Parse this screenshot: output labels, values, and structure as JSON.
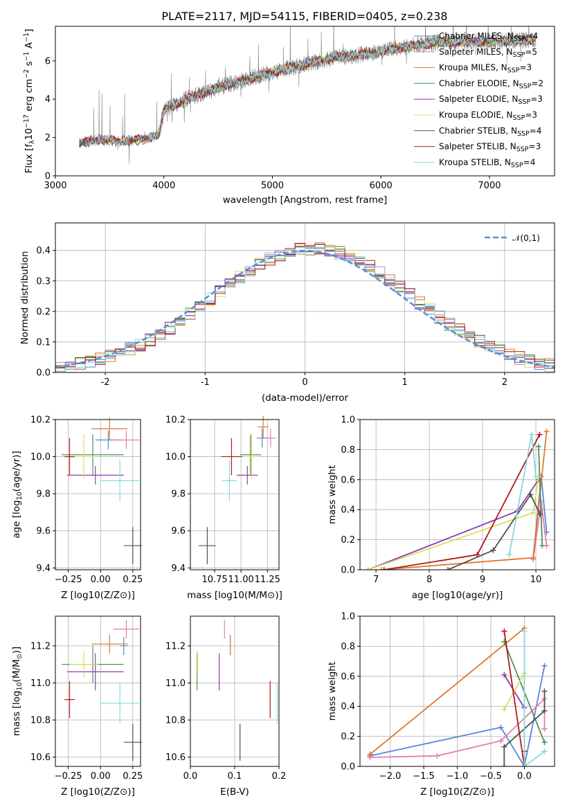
{
  "title": "PLATE=2117, MJD=54115, FIBERID=0405, z=0.238",
  "colors": {
    "Chabrier MILES": "#5a86d6",
    "Salpeter MILES": "#e37dac",
    "Kroupa MILES": "#e0772a",
    "Chabrier ELODIE": "#4f8f5a",
    "Salpeter ELODIE": "#8e3bb0",
    "Kroupa ELODIE": "#d8e05a",
    "Chabrier STELIB": "#505050",
    "Salpeter STELIB": "#b01818",
    "Kroupa STELIB": "#86d8dc"
  },
  "chart_data": [
    {
      "id": "spectrum",
      "type": "line",
      "title": "PLATE=2117, MJD=54115, FIBERID=0405, z=0.238",
      "xlabel": "wavelength [Angstrom, rest frame]",
      "ylabel": "Flux [f_λ 10^-17 erg cm^-2 s^-1 A^-1]",
      "xlim": [
        3000,
        7600
      ],
      "ylim": [
        0,
        7.8
      ],
      "xticks": [
        3000,
        4000,
        5000,
        6000,
        7000
      ],
      "yticks": [
        0,
        2,
        4,
        6
      ],
      "data_range": [
        3220,
        7430
      ],
      "legend": [
        {
          "model": "Chabrier MILES",
          "nssp": "4"
        },
        {
          "model": "Salpeter MILES",
          "nssp": "5"
        },
        {
          "model": "Kroupa MILES",
          "nssp": "3"
        },
        {
          "model": "Chabrier ELODIE",
          "nssp": "2"
        },
        {
          "model": "Salpeter ELODIE",
          "nssp": "3"
        },
        {
          "model": "Kroupa ELODIE",
          "nssp": "3"
        },
        {
          "model": "Chabrier STELIB",
          "nssp": "4"
        },
        {
          "model": "Salpeter STELIB",
          "nssp": "3"
        },
        {
          "model": "Kroupa STELIB",
          "nssp": "4"
        }
      ],
      "continuum": {
        "x": [
          3220,
          3400,
          3600,
          3800,
          3950,
          4000,
          4200,
          4500,
          4800,
          5000,
          5300,
          5600,
          5800,
          6000,
          6300,
          6600,
          7000,
          7400
        ],
        "y": [
          1.7,
          1.9,
          1.8,
          1.9,
          2.1,
          3.4,
          4.0,
          4.6,
          5.1,
          5.4,
          5.8,
          6.2,
          6.3,
          6.5,
          6.8,
          7.0,
          7.0,
          7.1
        ]
      }
    },
    {
      "id": "residuals",
      "type": "line",
      "xlabel": "(data-model)/error",
      "ylabel": "Normed distribution",
      "xlim": [
        -2.5,
        2.5
      ],
      "ylim": [
        0,
        0.49
      ],
      "xticks": [
        -2,
        -1,
        0,
        1,
        2
      ],
      "yticks": [
        0.0,
        0.1,
        0.2,
        0.3,
        0.4
      ],
      "reference": {
        "name": "𝒩(0,1)",
        "mean": 0,
        "sigma": 1
      },
      "bin_width": 0.1
    },
    {
      "id": "age-vs-Z",
      "type": "scatter",
      "xlabel": "Z [log10(Z/Z⊙)]",
      "ylabel": "age [log10(age/yr)]",
      "xlim": [
        -0.35,
        0.31
      ],
      "ylim": [
        9.39,
        10.2
      ],
      "xticks": [
        -0.25,
        0.0,
        0.25
      ],
      "xticklabels": [
        "−0.25",
        "0.00",
        "0.25"
      ],
      "yticks": [
        9.4,
        9.6,
        9.8,
        10.0,
        10.2
      ],
      "points": [
        {
          "model": "Chabrier MILES",
          "x": 0.06,
          "xerr": 0.1,
          "y": 10.09,
          "yerr": 0.05
        },
        {
          "model": "Salpeter MILES",
          "x": 0.2,
          "xerr": 0.1,
          "y": 10.09,
          "yerr": 0.05
        },
        {
          "model": "Kroupa MILES",
          "x": 0.07,
          "xerr": 0.14,
          "y": 10.15,
          "yerr": 0.06
        },
        {
          "model": "Chabrier ELODIE",
          "x": -0.06,
          "xerr": 0.24,
          "y": 10.01,
          "yerr": 0.11
        },
        {
          "model": "Salpeter ELODIE",
          "x": -0.04,
          "xerr": 0.22,
          "y": 9.9,
          "yerr": 0.05
        },
        {
          "model": "Kroupa ELODIE",
          "x": -0.13,
          "xerr": 0.11,
          "y": 10.0,
          "yerr": 0.12
        },
        {
          "model": "Chabrier STELIB",
          "x": 0.25,
          "xerr": 0.07,
          "y": 9.52,
          "yerr": 0.1
        },
        {
          "model": "Salpeter STELIB",
          "x": -0.24,
          "xerr": 0.04,
          "y": 10.0,
          "yerr": 0.1
        },
        {
          "model": "Kroupa STELIB",
          "x": 0.15,
          "xerr": 0.15,
          "y": 9.87,
          "yerr": 0.11
        }
      ]
    },
    {
      "id": "age-vs-mass",
      "type": "scatter",
      "xlabel": "mass [log10(M/M⊙)]",
      "xlim": [
        10.52,
        11.36
      ],
      "ylim": [
        9.39,
        10.2
      ],
      "xticks": [
        10.75,
        11.0,
        11.25
      ],
      "xticklabels": [
        "10.75",
        "11.00",
        "11.25"
      ],
      "yticks": [
        9.4,
        9.6,
        9.8,
        10.0,
        10.2
      ],
      "points": [
        {
          "model": "Chabrier MILES",
          "x": 11.2,
          "xerr": 0.05,
          "y": 10.1,
          "yerr": 0.05
        },
        {
          "model": "Salpeter MILES",
          "x": 11.28,
          "xerr": 0.05,
          "y": 10.1,
          "yerr": 0.05
        },
        {
          "model": "Kroupa MILES",
          "x": 11.21,
          "xerr": 0.05,
          "y": 10.16,
          "yerr": 0.06
        },
        {
          "model": "Chabrier ELODIE",
          "x": 11.09,
          "xerr": 0.1,
          "y": 10.01,
          "yerr": 0.11
        },
        {
          "model": "Salpeter ELODIE",
          "x": 11.06,
          "xerr": 0.1,
          "y": 9.9,
          "yerr": 0.05
        },
        {
          "model": "Kroupa ELODIE",
          "x": 11.1,
          "xerr": 0.07,
          "y": 10.0,
          "yerr": 0.12
        },
        {
          "model": "Chabrier STELIB",
          "x": 10.68,
          "xerr": 0.08,
          "y": 9.52,
          "yerr": 0.1
        },
        {
          "model": "Salpeter STELIB",
          "x": 10.91,
          "xerr": 0.1,
          "y": 10.0,
          "yerr": 0.1
        },
        {
          "model": "Kroupa STELIB",
          "x": 10.89,
          "xerr": 0.07,
          "y": 9.87,
          "yerr": 0.11
        }
      ]
    },
    {
      "id": "massweight-vs-age",
      "type": "line",
      "xlabel": "age [log10(age/yr)]",
      "ylabel": "mass weight",
      "xlim": [
        6.7,
        10.35
      ],
      "ylim": [
        0,
        1.0
      ],
      "xticks": [
        7,
        8,
        9,
        10
      ],
      "yticks": [
        0.0,
        0.2,
        0.4,
        0.6,
        0.8,
        1.0
      ],
      "series": [
        {
          "model": "Chabrier MILES",
          "x": [
            9.95,
            10.1,
            10.2
          ],
          "y": [
            0.08,
            0.62,
            0.25
          ]
        },
        {
          "model": "Salpeter MILES",
          "x": [
            9.95,
            10.1,
            10.2
          ],
          "y": [
            0.07,
            0.45,
            0.16
          ]
        },
        {
          "model": "Kroupa MILES",
          "x": [
            7.1,
            9.95,
            10.2
          ],
          "y": [
            0.0,
            0.08,
            0.92
          ]
        },
        {
          "model": "Chabrier ELODIE",
          "x": [
            10.05,
            10.12
          ],
          "y": [
            0.82,
            0.16
          ]
        },
        {
          "model": "Salpeter ELODIE",
          "x": [
            6.85,
            9.65,
            10.05
          ],
          "y": [
            0.0,
            0.39,
            0.6
          ]
        },
        {
          "model": "Kroupa ELODIE",
          "x": [
            6.85,
            9.95,
            10.05
          ],
          "y": [
            0.0,
            0.38,
            0.62
          ]
        },
        {
          "model": "Chabrier STELIB",
          "x": [
            8.35,
            9.2,
            9.9,
            10.08
          ],
          "y": [
            0.0,
            0.13,
            0.5,
            0.37
          ]
        },
        {
          "model": "Salpeter STELIB",
          "x": [
            7.15,
            8.9,
            10.07
          ],
          "y": [
            0.0,
            0.1,
            0.9
          ]
        },
        {
          "model": "Kroupa STELIB",
          "x": [
            9.5,
            9.92,
            10.0
          ],
          "y": [
            0.1,
            0.9,
            0.62
          ]
        }
      ]
    },
    {
      "id": "mass-vs-Z",
      "type": "scatter",
      "xlabel": "Z [log10(Z/Z⊙)]",
      "ylabel": "mass [log10(M/M⊙)]",
      "xlim": [
        -0.35,
        0.31
      ],
      "ylim": [
        10.55,
        11.36
      ],
      "xticks": [
        -0.25,
        0.0,
        0.25
      ],
      "xticklabels": [
        "−0.25",
        "0.00",
        "0.25"
      ],
      "yticks": [
        10.6,
        10.8,
        11.0,
        11.2
      ],
      "points": [
        {
          "model": "Chabrier MILES",
          "x": 0.18,
          "xerr": 0.03,
          "y": 11.2,
          "yerr": 0.05
        },
        {
          "model": "Salpeter MILES",
          "x": 0.2,
          "xerr": 0.1,
          "y": 11.29,
          "yerr": 0.05
        },
        {
          "model": "Kroupa MILES",
          "x": 0.07,
          "xerr": 0.14,
          "y": 11.21,
          "yerr": 0.05
        },
        {
          "model": "Chabrier ELODIE",
          "x": -0.06,
          "xerr": 0.24,
          "y": 11.1,
          "yerr": 0.1
        },
        {
          "model": "Salpeter ELODIE",
          "x": -0.04,
          "xerr": 0.22,
          "y": 11.06,
          "yerr": 0.1
        },
        {
          "model": "Kroupa ELODIE",
          "x": -0.13,
          "xerr": 0.11,
          "y": 11.1,
          "yerr": 0.07
        },
        {
          "model": "Chabrier STELIB",
          "x": 0.25,
          "xerr": 0.07,
          "y": 10.68,
          "yerr": 0.1
        },
        {
          "model": "Salpeter STELIB",
          "x": -0.24,
          "xerr": 0.04,
          "y": 10.91,
          "yerr": 0.1
        },
        {
          "model": "Kroupa STELIB",
          "x": 0.15,
          "xerr": 0.15,
          "y": 10.89,
          "yerr": 0.11
        }
      ]
    },
    {
      "id": "mass-vs-EBV",
      "type": "scatter",
      "xlabel": "E(B-V)",
      "xlim": [
        0.0,
        0.2
      ],
      "ylim": [
        10.55,
        11.36
      ],
      "xticks": [
        0.0,
        0.1,
        0.2
      ],
      "xticklabels": [
        "0.0",
        "0.1",
        "0.2"
      ],
      "yticks": [
        10.6,
        10.8,
        11.0,
        11.2
      ],
      "points": [
        {
          "model": "Chabrier MILES",
          "x": 0.09,
          "y": 11.2,
          "yerr": 0.05
        },
        {
          "model": "Salpeter MILES",
          "x": 0.077,
          "y": 11.29,
          "yerr": 0.05
        },
        {
          "model": "Kroupa MILES",
          "x": 0.09,
          "y": 11.21,
          "yerr": 0.05
        },
        {
          "model": "Chabrier ELODIE",
          "x": 0.015,
          "y": 11.06,
          "yerr": 0.1
        },
        {
          "model": "Salpeter ELODIE",
          "x": 0.065,
          "y": 11.06,
          "yerr": 0.1
        },
        {
          "model": "Kroupa ELODIE",
          "x": 0.016,
          "y": 11.1,
          "yerr": 0.07
        },
        {
          "model": "Chabrier STELIB",
          "x": 0.112,
          "y": 10.68,
          "yerr": 0.1
        },
        {
          "model": "Salpeter STELIB",
          "x": 0.18,
          "y": 10.91,
          "yerr": 0.1
        },
        {
          "model": "Kroupa STELIB",
          "x": 0.196,
          "y": 10.89,
          "yerr": 0.11
        }
      ]
    },
    {
      "id": "massweight-vs-Z",
      "type": "line",
      "xlabel": "Z [log10(Z/Z⊙)]",
      "ylabel": "mass weight",
      "xlim": [
        -2.45,
        0.45
      ],
      "ylim": [
        0,
        1.0
      ],
      "xticks": [
        -2.0,
        -1.5,
        -1.0,
        -0.5,
        0.0
      ],
      "xticklabels": [
        "−2.0",
        "−1.5",
        "−1.0",
        "−0.5",
        "0.0"
      ],
      "yticks": [
        0.0,
        0.2,
        0.4,
        0.6,
        0.8,
        1.0
      ],
      "series": [
        {
          "model": "Chabrier MILES",
          "x": [
            -2.3,
            -0.35,
            0.0,
            0.3
          ],
          "y": [
            0.07,
            0.26,
            0.0,
            0.67
          ]
        },
        {
          "model": "Salpeter MILES",
          "x": [
            -2.3,
            -1.3,
            -0.35,
            0.3,
            0.3
          ],
          "y": [
            0.06,
            0.07,
            0.17,
            0.45,
            0.25
          ]
        },
        {
          "model": "Kroupa MILES",
          "x": [
            -2.3,
            0.0
          ],
          "y": [
            0.08,
            0.92
          ]
        },
        {
          "model": "Chabrier ELODIE",
          "x": [
            -0.3,
            0.3
          ],
          "y": [
            0.83,
            0.16
          ]
        },
        {
          "model": "Salpeter ELODIE",
          "x": [
            -0.3,
            0.0
          ],
          "y": [
            0.61,
            0.39
          ]
        },
        {
          "model": "Kroupa ELODIE",
          "x": [
            -0.3,
            0.0,
            0.0
          ],
          "y": [
            0.38,
            0.62,
            0.0
          ]
        },
        {
          "model": "Chabrier STELIB",
          "x": [
            -0.3,
            -0.3,
            0.3,
            0.3
          ],
          "y": [
            0.0,
            0.13,
            0.37,
            0.5
          ]
        },
        {
          "model": "Salpeter STELIB",
          "x": [
            -0.3,
            0.0,
            0.0
          ],
          "y": [
            0.9,
            0.0,
            0.1
          ]
        },
        {
          "model": "Kroupa STELIB",
          "x": [
            0.0,
            0.0,
            0.3
          ],
          "y": [
            0.9,
            0.0,
            0.1
          ]
        }
      ]
    }
  ]
}
